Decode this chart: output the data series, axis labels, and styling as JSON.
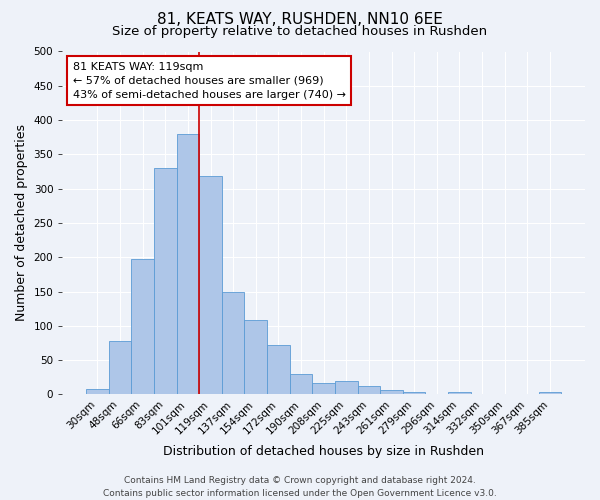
{
  "title": "81, KEATS WAY, RUSHDEN, NN10 6EE",
  "subtitle": "Size of property relative to detached houses in Rushden",
  "xlabel": "Distribution of detached houses by size in Rushden",
  "ylabel": "Number of detached properties",
  "bar_labels": [
    "30sqm",
    "48sqm",
    "66sqm",
    "83sqm",
    "101sqm",
    "119sqm",
    "137sqm",
    "154sqm",
    "172sqm",
    "190sqm",
    "208sqm",
    "225sqm",
    "243sqm",
    "261sqm",
    "279sqm",
    "296sqm",
    "314sqm",
    "332sqm",
    "350sqm",
    "367sqm",
    "385sqm"
  ],
  "bar_values": [
    8,
    78,
    197,
    330,
    380,
    318,
    150,
    108,
    72,
    30,
    17,
    20,
    13,
    6,
    4,
    0,
    4,
    0,
    0,
    0,
    3
  ],
  "bar_color": "#aec6e8",
  "bar_edge_color": "#5b9bd5",
  "vline_color": "#cc0000",
  "vline_index": 5,
  "ylim": [
    0,
    500
  ],
  "yticks": [
    0,
    50,
    100,
    150,
    200,
    250,
    300,
    350,
    400,
    450,
    500
  ],
  "annotation_title": "81 KEATS WAY: 119sqm",
  "annotation_line1": "← 57% of detached houses are smaller (969)",
  "annotation_line2": "43% of semi-detached houses are larger (740) →",
  "annotation_box_color": "#ffffff",
  "annotation_box_edge": "#cc0000",
  "footer_line1": "Contains HM Land Registry data © Crown copyright and database right 2024.",
  "footer_line2": "Contains public sector information licensed under the Open Government Licence v3.0.",
  "background_color": "#eef2f9",
  "grid_color": "#ffffff",
  "title_fontsize": 11,
  "subtitle_fontsize": 9.5,
  "axis_label_fontsize": 9,
  "tick_fontsize": 7.5,
  "annotation_fontsize": 8,
  "footer_fontsize": 6.5
}
